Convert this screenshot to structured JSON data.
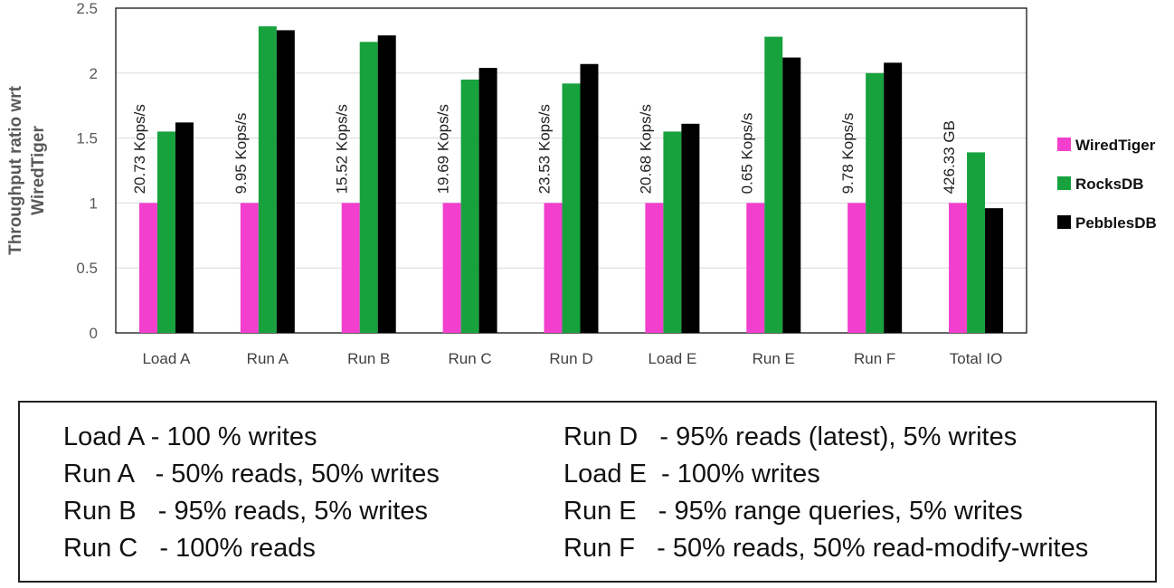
{
  "chart_data": {
    "type": "bar",
    "ylabel": "Throughput ratio wrt WiredTiger",
    "ylabel_lines": [
      "Throughput ratio wrt",
      "WiredTiger"
    ],
    "ylim": [
      0,
      2.5
    ],
    "yticks": [
      "0",
      "0.5",
      "1",
      "1.5",
      "2",
      "2.5"
    ],
    "grid": true,
    "legend_position": "right",
    "categories": [
      "Load A",
      "Run A",
      "Run B",
      "Run C",
      "Run D",
      "Load E",
      "Run E",
      "Run F",
      "Total IO"
    ],
    "series": [
      {
        "name": "WiredTiger",
        "color": "#f23fce",
        "values": [
          1,
          1,
          1,
          1,
          1,
          1,
          1,
          1,
          1
        ]
      },
      {
        "name": "RocksDB",
        "color": "#17a23e",
        "values": [
          1.55,
          2.36,
          2.24,
          1.95,
          1.92,
          1.55,
          2.28,
          2.0,
          1.39
        ]
      },
      {
        "name": "PebblesDB",
        "color": "#000000",
        "values": [
          1.62,
          2.33,
          2.29,
          2.04,
          2.07,
          1.61,
          2.12,
          2.08,
          0.96
        ]
      }
    ],
    "annotations": [
      "20.73 Kops/s",
      "9.95 Kops/s",
      "15.52 Kops/s",
      "19.69 Kops/s",
      "23.53 Kops/s",
      "20.68 Kops/s",
      "0.65 Kops/s",
      "9.78 Kops/s",
      "426.33 GB"
    ]
  },
  "workload_legend": {
    "left": [
      "Load A - 100 % writes",
      "Run A   - 50% reads, 50% writes",
      "Run B   - 95% reads, 5% writes",
      "Run C   - 100% reads"
    ],
    "right": [
      "Run D   - 95% reads (latest), 5% writes",
      "Load E  - 100% writes",
      "Run E   - 95% range queries, 5% writes",
      "Run F   - 50% reads, 50% read-modify-writes"
    ]
  }
}
